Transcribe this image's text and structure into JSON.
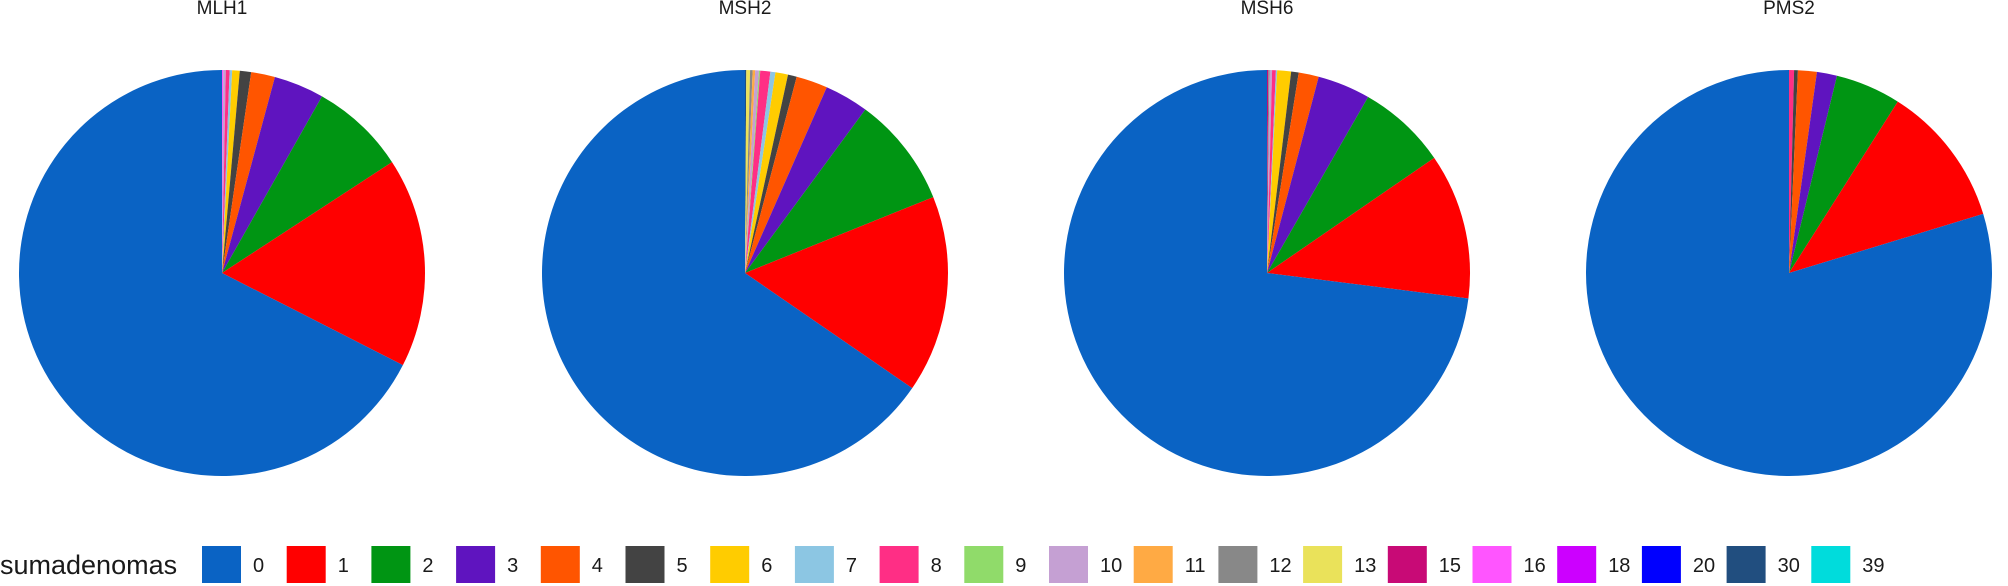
{
  "chart_data": {
    "type": "pie",
    "legend": {
      "title": "sumadenomas",
      "position": "bottom",
      "categories": [
        "0",
        "1",
        "2",
        "3",
        "4",
        "5",
        "6",
        "7",
        "8",
        "9",
        "10",
        "11",
        "12",
        "13",
        "15",
        "16",
        "18",
        "20",
        "30",
        "39"
      ],
      "colors": [
        "#0A63C4",
        "#FF0000",
        "#009513",
        "#5F14BF",
        "#FF5500",
        "#434343",
        "#FFCC00",
        "#8CC6E3",
        "#FF2E85",
        "#90DB6A",
        "#C5A0D3",
        "#FFAA44",
        "#888888",
        "#EAE25A",
        "#C80A76",
        "#FF55FF",
        "#CC00FF",
        "#0000FF",
        "#214E7F",
        "#00DCDC"
      ]
    },
    "panels": [
      {
        "title": "MLH1",
        "slices": [
          {
            "category": "0",
            "value": 67.5
          },
          {
            "category": "1",
            "value": 16.7
          },
          {
            "category": "2",
            "value": 7.6
          },
          {
            "category": "3",
            "value": 4.0
          },
          {
            "category": "4",
            "value": 1.9
          },
          {
            "category": "5",
            "value": 0.9
          },
          {
            "category": "6",
            "value": 0.6
          },
          {
            "category": "7",
            "value": 0.2
          },
          {
            "category": "8",
            "value": 0.3
          },
          {
            "category": "10",
            "value": 0.2
          },
          {
            "category": "16",
            "value": 0.1
          }
        ]
      },
      {
        "title": "MSH2",
        "slices": [
          {
            "category": "0",
            "value": 65.4
          },
          {
            "category": "1",
            "value": 15.7
          },
          {
            "category": "2",
            "value": 8.8
          },
          {
            "category": "3",
            "value": 3.5
          },
          {
            "category": "4",
            "value": 2.5
          },
          {
            "category": "5",
            "value": 0.7
          },
          {
            "category": "6",
            "value": 1.0
          },
          {
            "category": "7",
            "value": 0.4
          },
          {
            "category": "8",
            "value": 0.8
          },
          {
            "category": "9",
            "value": 0.1
          },
          {
            "category": "10",
            "value": 0.3
          },
          {
            "category": "11",
            "value": 0.2
          },
          {
            "category": "12",
            "value": 0.2
          },
          {
            "category": "13",
            "value": 0.3
          },
          {
            "category": "30",
            "value": 0.1
          }
        ]
      },
      {
        "title": "MSH6",
        "slices": [
          {
            "category": "0",
            "value": 73.0
          },
          {
            "category": "1",
            "value": 11.6
          },
          {
            "category": "2",
            "value": 7.1
          },
          {
            "category": "3",
            "value": 4.2
          },
          {
            "category": "4",
            "value": 1.6
          },
          {
            "category": "5",
            "value": 0.6
          },
          {
            "category": "6",
            "value": 1.1
          },
          {
            "category": "7",
            "value": 0.1
          },
          {
            "category": "8",
            "value": 0.3
          },
          {
            "category": "10",
            "value": 0.2
          },
          {
            "category": "12",
            "value": 0.1
          },
          {
            "category": "15",
            "value": 0.1
          }
        ]
      },
      {
        "title": "PMS2",
        "slices": [
          {
            "category": "0",
            "value": 79.7
          },
          {
            "category": "1",
            "value": 11.3
          },
          {
            "category": "2",
            "value": 5.2
          },
          {
            "category": "3",
            "value": 1.6
          },
          {
            "category": "4",
            "value": 1.5
          },
          {
            "category": "5",
            "value": 0.3
          },
          {
            "category": "8",
            "value": 0.4
          }
        ]
      }
    ]
  }
}
